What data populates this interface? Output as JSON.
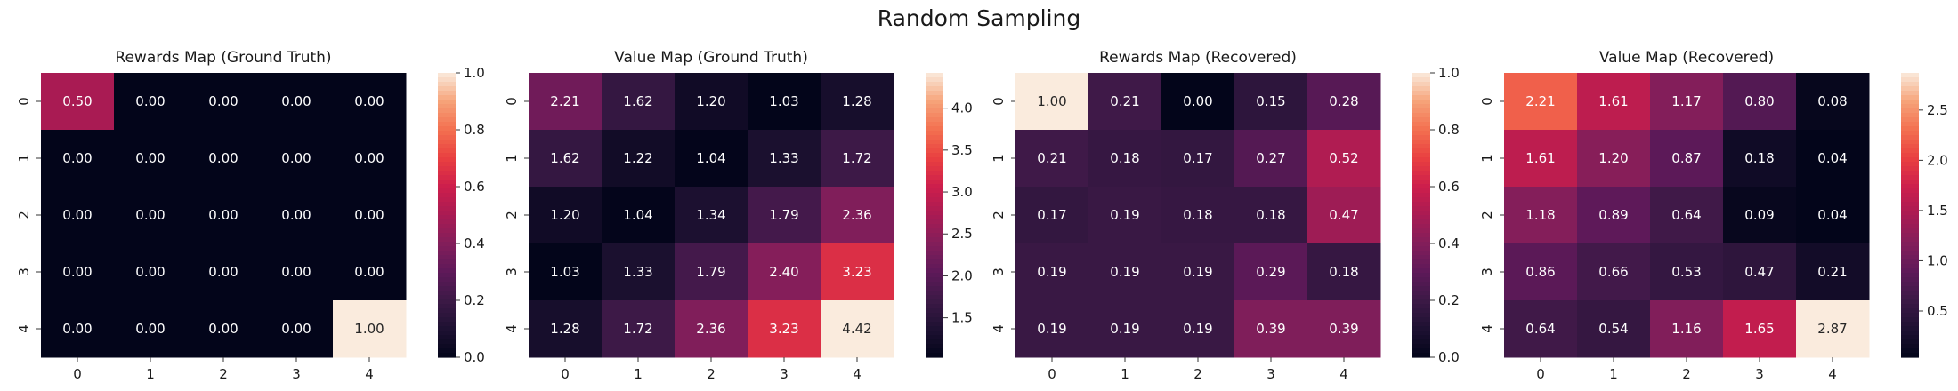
{
  "figure": {
    "suptitle": "Random Sampling"
  },
  "chart_data": [
    {
      "type": "heatmap",
      "title": "Rewards Map (Ground Truth)",
      "x_ticks": [
        "0",
        "1",
        "2",
        "3",
        "4"
      ],
      "y_ticks": [
        "0",
        "1",
        "2",
        "3",
        "4"
      ],
      "values": [
        [
          0.5,
          0.0,
          0.0,
          0.0,
          0.0
        ],
        [
          0.0,
          0.0,
          0.0,
          0.0,
          0.0
        ],
        [
          0.0,
          0.0,
          0.0,
          0.0,
          0.0
        ],
        [
          0.0,
          0.0,
          0.0,
          0.0,
          0.0
        ],
        [
          0.0,
          0.0,
          0.0,
          0.0,
          1.0
        ]
      ],
      "vmin": 0.0,
      "vmax": 1.0,
      "colorbar_ticks": [
        0.0,
        0.2,
        0.4,
        0.6,
        0.8,
        1.0
      ],
      "colorbar_labels": [
        "0.0",
        "0.2",
        "0.4",
        "0.6",
        "0.8",
        "1.0"
      ],
      "colormap": "rocket"
    },
    {
      "type": "heatmap",
      "title": "Value Map (Ground Truth)",
      "x_ticks": [
        "0",
        "1",
        "2",
        "3",
        "4"
      ],
      "y_ticks": [
        "0",
        "1",
        "2",
        "3",
        "4"
      ],
      "values": [
        [
          2.21,
          1.62,
          1.2,
          1.03,
          1.28
        ],
        [
          1.62,
          1.22,
          1.04,
          1.33,
          1.72
        ],
        [
          1.2,
          1.04,
          1.34,
          1.79,
          2.36
        ],
        [
          1.03,
          1.33,
          1.79,
          2.4,
          3.23
        ],
        [
          1.28,
          1.72,
          2.36,
          3.23,
          4.42
        ]
      ],
      "vmin": 1.03,
      "vmax": 4.42,
      "colorbar_ticks": [
        1.5,
        2.0,
        2.5,
        3.0,
        3.5,
        4.0
      ],
      "colorbar_labels": [
        "1.5",
        "2.0",
        "2.5",
        "3.0",
        "3.5",
        "4.0"
      ],
      "colormap": "rocket"
    },
    {
      "type": "heatmap",
      "title": "Rewards Map (Recovered)",
      "x_ticks": [
        "0",
        "1",
        "2",
        "3",
        "4"
      ],
      "y_ticks": [
        "0",
        "1",
        "2",
        "3",
        "4"
      ],
      "values": [
        [
          1.0,
          0.21,
          0.0,
          0.15,
          0.28
        ],
        [
          0.21,
          0.18,
          0.17,
          0.27,
          0.52
        ],
        [
          0.17,
          0.19,
          0.18,
          0.18,
          0.47
        ],
        [
          0.19,
          0.19,
          0.19,
          0.29,
          0.18
        ],
        [
          0.19,
          0.19,
          0.19,
          0.39,
          0.39
        ]
      ],
      "vmin": 0.0,
      "vmax": 1.0,
      "colorbar_ticks": [
        0.0,
        0.2,
        0.4,
        0.6,
        0.8,
        1.0
      ],
      "colorbar_labels": [
        "0.0",
        "0.2",
        "0.4",
        "0.6",
        "0.8",
        "1.0"
      ],
      "colormap": "rocket"
    },
    {
      "type": "heatmap",
      "title": "Value Map (Recovered)",
      "x_ticks": [
        "0",
        "1",
        "2",
        "3",
        "4"
      ],
      "y_ticks": [
        "0",
        "1",
        "2",
        "3",
        "4"
      ],
      "values": [
        [
          2.21,
          1.61,
          1.17,
          0.8,
          0.08
        ],
        [
          1.61,
          1.2,
          0.87,
          0.18,
          0.04
        ],
        [
          1.18,
          0.89,
          0.64,
          0.09,
          0.04
        ],
        [
          0.86,
          0.66,
          0.53,
          0.47,
          0.21
        ],
        [
          0.64,
          0.54,
          1.16,
          1.65,
          2.87
        ]
      ],
      "vmin": 0.04,
      "vmax": 2.87,
      "colorbar_ticks": [
        0.5,
        1.0,
        1.5,
        2.0,
        2.5
      ],
      "colorbar_labels": [
        "0.5",
        "1.0",
        "1.5",
        "2.0",
        "2.5"
      ],
      "colormap": "rocket"
    }
  ]
}
